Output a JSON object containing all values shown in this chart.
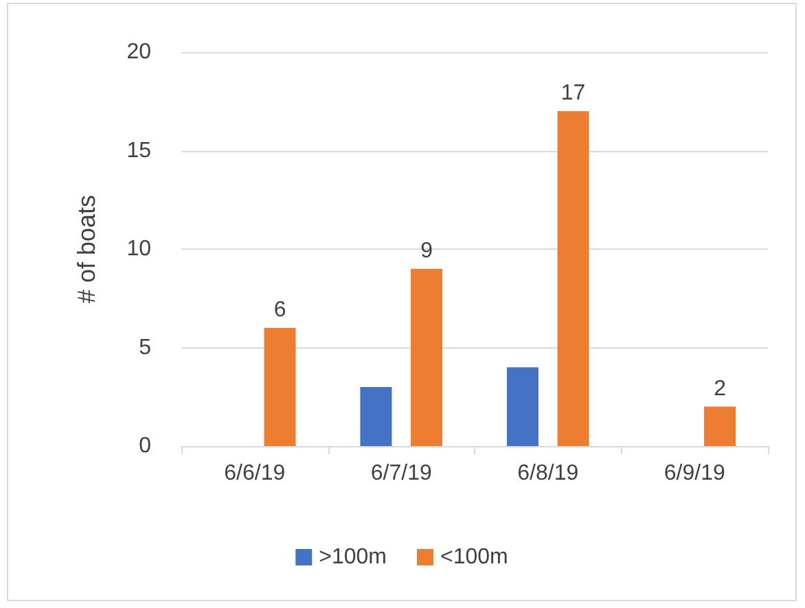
{
  "chart_data": {
    "type": "bar",
    "ylabel": "# of boats",
    "categories": [
      "6/6/19",
      "6/7/19",
      "6/8/19",
      "6/9/19"
    ],
    "series": [
      {
        "name": ">100m",
        "color": "#4472c4",
        "values": [
          0,
          3,
          4,
          0
        ]
      },
      {
        "name": "<100m",
        "color": "#ed7d31",
        "values": [
          6,
          9,
          17,
          2
        ],
        "value_labels": [
          "6",
          "9",
          "17",
          "2"
        ]
      }
    ],
    "ylim": [
      0,
      20
    ],
    "yticks": [
      0,
      5,
      10,
      15,
      20
    ],
    "grid": "y",
    "legend": "bottom"
  }
}
